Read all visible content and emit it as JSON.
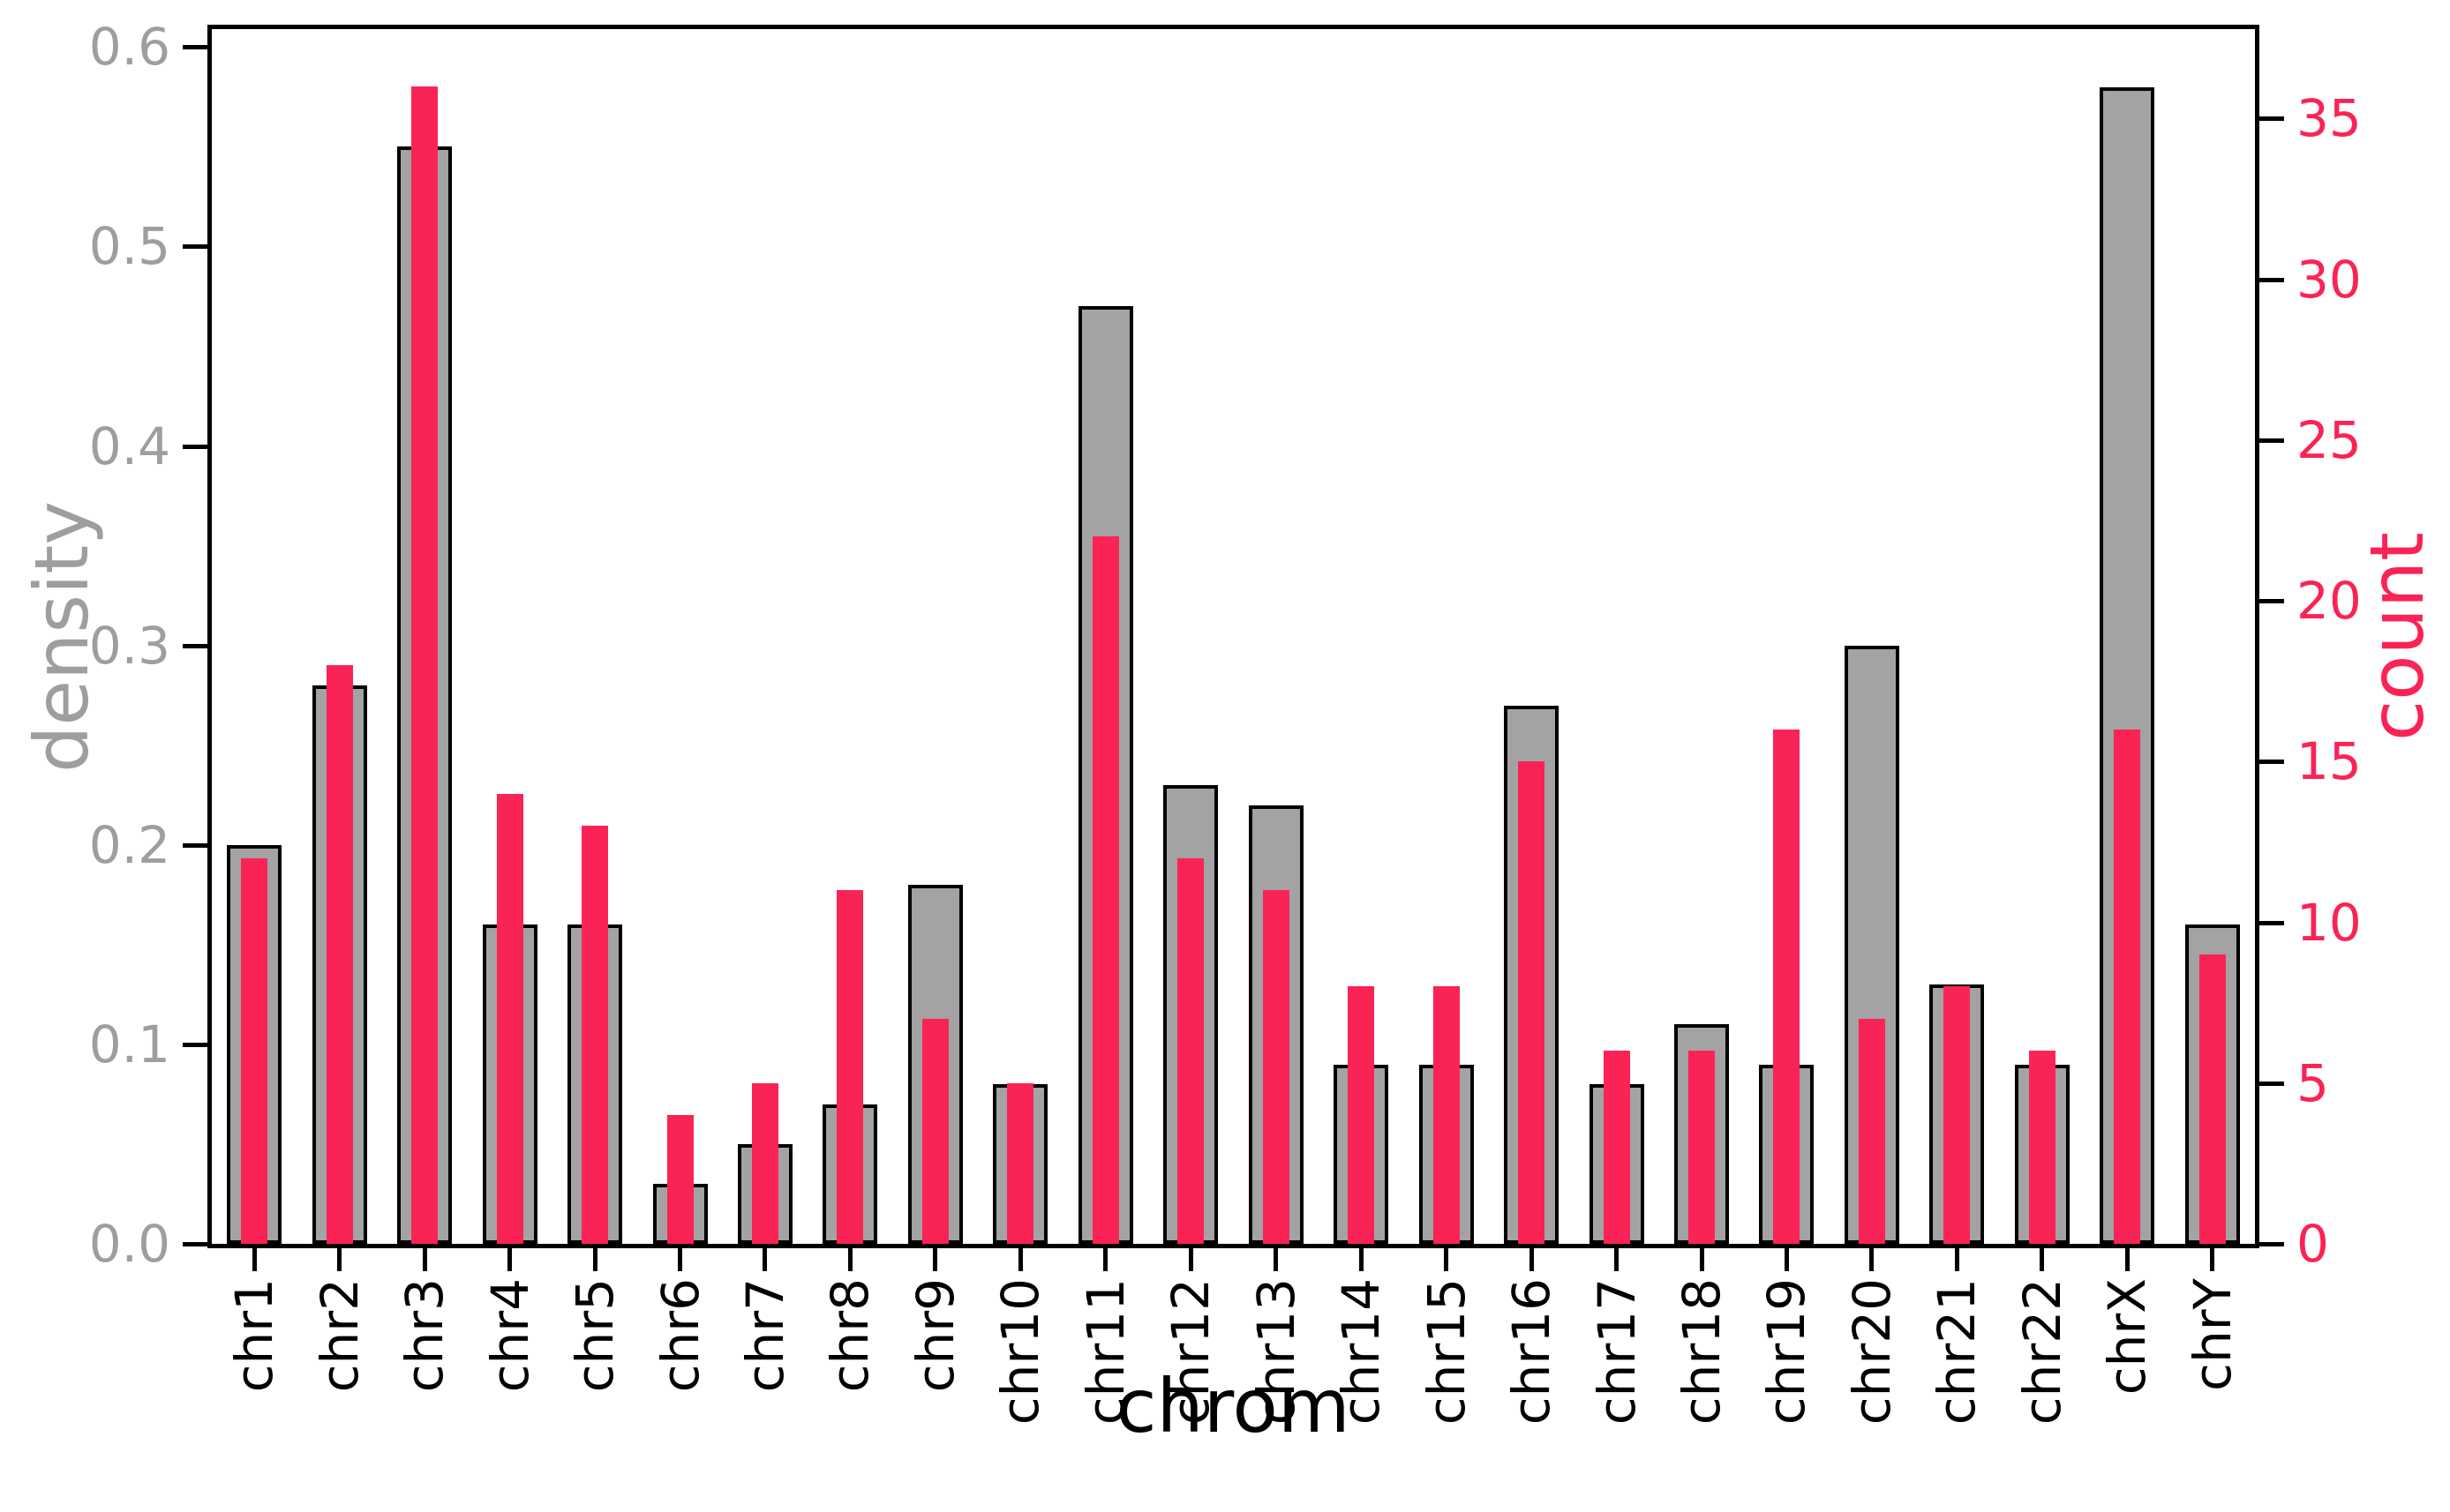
{
  "chart_data": {
    "type": "bar",
    "title": "",
    "xlabel": "chrom",
    "ylabel_left": "density",
    "ylabel_right": "count",
    "legend_position": "none",
    "grid": false,
    "categories": [
      "chr1",
      "chr2",
      "chr3",
      "chr4",
      "chr5",
      "chr6",
      "chr7",
      "chr8",
      "chr9",
      "chr10",
      "chr11",
      "chr12",
      "chr13",
      "chr14",
      "chr15",
      "chr16",
      "chr17",
      "chr18",
      "chr19",
      "chr20",
      "chr21",
      "chr22",
      "chrX",
      "chrY"
    ],
    "series": [
      {
        "name": "density",
        "axis": "left",
        "color": "#A3A3A3",
        "values": [
          0.2,
          0.28,
          0.55,
          0.16,
          0.16,
          0.03,
          0.05,
          0.07,
          0.18,
          0.08,
          0.47,
          0.23,
          0.22,
          0.09,
          0.09,
          0.27,
          0.08,
          0.11,
          0.09,
          0.3,
          0.13,
          0.09,
          0.58,
          0.16
        ]
      },
      {
        "name": "count",
        "axis": "right",
        "color": "#FA2355",
        "values": [
          12,
          18,
          36,
          14,
          13,
          4,
          5,
          11,
          7,
          5,
          22,
          12,
          11,
          8,
          8,
          15,
          6,
          6,
          16,
          7,
          8,
          6,
          16,
          9
        ]
      }
    ],
    "y_left_ticks": [
      0.0,
      0.1,
      0.2,
      0.3,
      0.4,
      0.5,
      0.6
    ],
    "y_left_tick_labels": [
      "0.0",
      "0.1",
      "0.2",
      "0.3",
      "0.4",
      "0.5",
      "0.6"
    ],
    "y_left_range": [
      0,
      0.609
    ],
    "y_right_ticks": [
      0,
      5,
      10,
      15,
      20,
      25,
      30,
      35
    ],
    "y_right_tick_labels": [
      "0",
      "5",
      "10",
      "15",
      "20",
      "25",
      "30",
      "35"
    ],
    "y_right_range": [
      0,
      37.78
    ]
  },
  "colors": {
    "density_bar_fill": "#A3A3A3",
    "density_bar_outline": "#000000",
    "count_bar_fill": "#FA2355",
    "left_axis_text": "#9E9E9E",
    "right_axis_text": "#FA2355",
    "x_axis_text": "#000000",
    "spine": "#000000",
    "background": "#FFFFFF"
  }
}
